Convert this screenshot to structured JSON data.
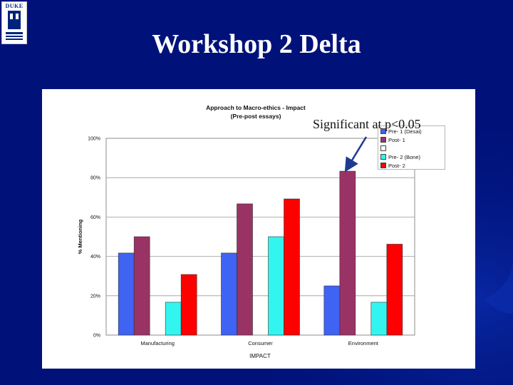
{
  "slide": {
    "title": "Workshop 2 Delta"
  },
  "logo": {
    "wordmark": "DUKE",
    "alt": "duke-university-logo"
  },
  "annotation": {
    "text": "Significant at p<0.05"
  },
  "colors": {
    "background": "#00127a",
    "pre1": "#3f63f2",
    "post1": "#993366",
    "blank": "#ffffff",
    "pre2": "#33f5f0",
    "post2": "#ff0000"
  },
  "chart_data": {
    "type": "bar",
    "title": "Approach to Macro-ethics - Impact",
    "subtitle": "(Pre-post essays)",
    "xlabel": "IMPACT",
    "ylabel": "% Mentioning",
    "ylim": [
      0,
      100
    ],
    "yticks": [
      "0%",
      "20%",
      "40%",
      "60%",
      "80%",
      "100%"
    ],
    "categories": [
      "Manufacturing",
      "Consumer",
      "Environment"
    ],
    "series": [
      {
        "name": "Pre- 1 (Desai)",
        "color": "#3f63f2",
        "values": [
          41.7,
          41.7,
          25
        ]
      },
      {
        "name": "Post- 1",
        "color": "#993366",
        "values": [
          50,
          66.7,
          83.3
        ]
      },
      {
        "name": "",
        "color": "#ffffff",
        "values": [
          0,
          0,
          0
        ]
      },
      {
        "name": "Pre- 2 (Bone)",
        "color": "#33f5f0",
        "values": [
          16.7,
          50,
          16.7
        ]
      },
      {
        "name": "Post- 2",
        "color": "#ff0000",
        "values": [
          30.8,
          69.2,
          46.2
        ]
      }
    ],
    "grid": true,
    "legend": "right"
  }
}
